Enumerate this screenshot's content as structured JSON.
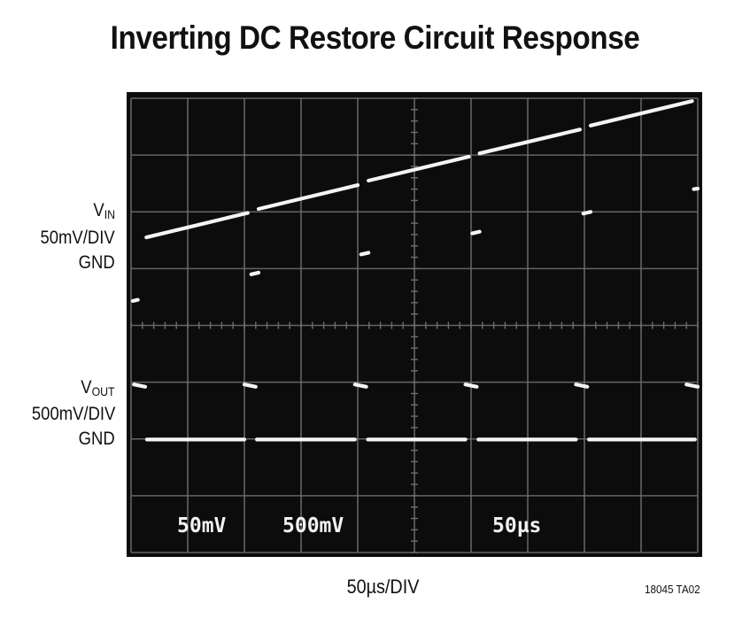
{
  "title": "Inverting DC Restore Circuit Response",
  "ch1": {
    "name": "V",
    "sub": "IN",
    "scale": "50mV/DIV",
    "gnd": "GND"
  },
  "ch2": {
    "name": "V",
    "sub": "OUT",
    "scale": "500mV/DIV",
    "gnd": "GND"
  },
  "xlabel": "50µs/DIV",
  "figure_ref": "18045 TA02",
  "readouts": [
    "50mV",
    "500mV",
    "50µs"
  ],
  "colors": {
    "screen": "#0c0c0c",
    "grid": "#6e6e6e",
    "trace": "#f4f4f4"
  },
  "chart_data": {
    "type": "line",
    "title": "Inverting DC Restore Circuit Response",
    "xlabel": "50µs/DIV",
    "grid": true,
    "divisions": {
      "x": 10,
      "y": 8
    },
    "xlim": [
      0,
      10
    ],
    "ylim": [
      0,
      8
    ],
    "units": "oscilloscope divisions",
    "series": [
      {
        "name": "VIN",
        "segments": [
          {
            "x": [
              0.03,
              0.12
            ],
            "y": [
              4.43,
              4.45
            ]
          },
          {
            "x": [
              0.27,
              2.06
            ],
            "y": [
              5.55,
              5.98
            ]
          },
          {
            "x": [
              2.12,
              2.25
            ],
            "y": [
              4.9,
              4.93
            ]
          },
          {
            "x": [
              2.25,
              4.0
            ],
            "y": [
              6.05,
              6.47
            ]
          },
          {
            "x": [
              4.06,
              4.19
            ],
            "y": [
              5.25,
              5.28
            ]
          },
          {
            "x": [
              4.19,
              5.96
            ],
            "y": [
              6.55,
              6.97
            ]
          },
          {
            "x": [
              6.02,
              6.15
            ],
            "y": [
              5.62,
              5.65
            ]
          },
          {
            "x": [
              6.15,
              7.92
            ],
            "y": [
              7.03,
              7.45
            ]
          },
          {
            "x": [
              7.98,
              8.11
            ],
            "y": [
              5.97,
              6.0
            ]
          },
          {
            "x": [
              8.11,
              9.9
            ],
            "y": [
              7.52,
              7.95
            ]
          },
          {
            "x": [
              9.93,
              10.0
            ],
            "y": [
              6.4,
              6.41
            ]
          }
        ]
      },
      {
        "name": "VOUT",
        "segments": [
          {
            "x": [
              0.05,
              0.25
            ],
            "y": [
              2.96,
              2.92
            ]
          },
          {
            "x": [
              0.28,
              2.0
            ],
            "y": [
              1.99,
              1.99
            ]
          },
          {
            "x": [
              2.0,
              2.2
            ],
            "y": [
              2.96,
              2.92
            ]
          },
          {
            "x": [
              2.22,
              3.95
            ],
            "y": [
              1.99,
              1.99
            ]
          },
          {
            "x": [
              3.95,
              4.15
            ],
            "y": [
              2.96,
              2.92
            ]
          },
          {
            "x": [
              4.18,
              5.9
            ],
            "y": [
              1.99,
              1.99
            ]
          },
          {
            "x": [
              5.9,
              6.1
            ],
            "y": [
              2.96,
              2.92
            ]
          },
          {
            "x": [
              6.13,
              7.85
            ],
            "y": [
              1.99,
              1.99
            ]
          },
          {
            "x": [
              7.85,
              8.05
            ],
            "y": [
              2.96,
              2.92
            ]
          },
          {
            "x": [
              8.08,
              9.95
            ],
            "y": [
              1.99,
              1.99
            ]
          },
          {
            "x": [
              9.8,
              10.0
            ],
            "y": [
              2.96,
              2.92
            ]
          }
        ]
      }
    ]
  }
}
